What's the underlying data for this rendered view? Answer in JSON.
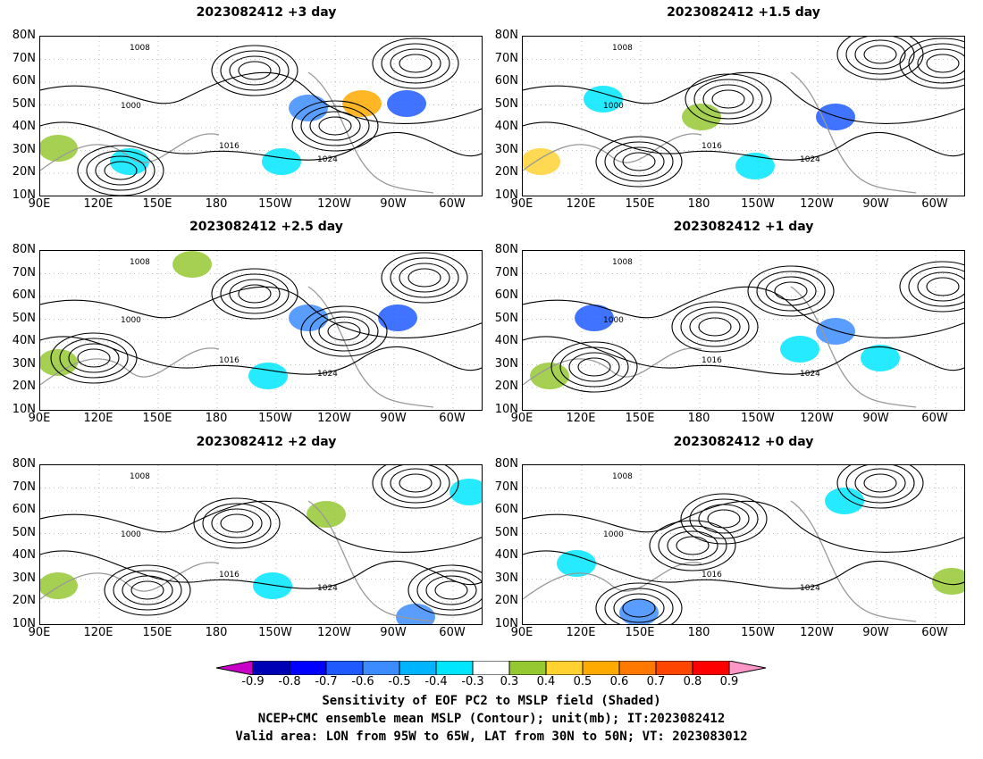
{
  "panels": [
    {
      "title": "2023082412 +3 day"
    },
    {
      "title": "2023082412 +1.5 day"
    },
    {
      "title": "2023082412 +2.5 day"
    },
    {
      "title": "2023082412 +1 day"
    },
    {
      "title": "2023082412 +2 day"
    },
    {
      "title": "2023082412 +0 day"
    }
  ],
  "axes": {
    "lat_labels": [
      "80N",
      "70N",
      "60N",
      "50N",
      "40N",
      "30N",
      "20N",
      "10N"
    ],
    "lon_labels": [
      "90E",
      "120E",
      "150E",
      "180",
      "150W",
      "120W",
      "90W",
      "60W"
    ]
  },
  "contour_labels": [
    "1008",
    "1016",
    "1000",
    "1024"
  ],
  "colorbar": {
    "ticks": [
      "-0.9",
      "-0.8",
      "-0.7",
      "-0.6",
      "-0.5",
      "-0.4",
      "-0.3",
      "0.3",
      "0.4",
      "0.5",
      "0.6",
      "0.7",
      "0.8",
      "0.9"
    ],
    "colors": [
      "#c800c8",
      "#0000b4",
      "#0000ff",
      "#1e5aff",
      "#3c8cff",
      "#00b4ff",
      "#00e6ff",
      "#ffffff",
      "#96c832",
      "#ffd232",
      "#ffaa00",
      "#ff7800",
      "#ff4600",
      "#ff0000",
      "#ff96c8"
    ]
  },
  "caption": {
    "line1": "Sensitivity of EOF PC2 to MSLP field (Shaded)",
    "line2": "NCEP+CMC ensemble mean MSLP (Contour); unit(mb); IT:2023082412",
    "line3": "Valid area: LON from 95W to 65W, LAT from 30N to 50N; VT: 2023083012"
  }
}
